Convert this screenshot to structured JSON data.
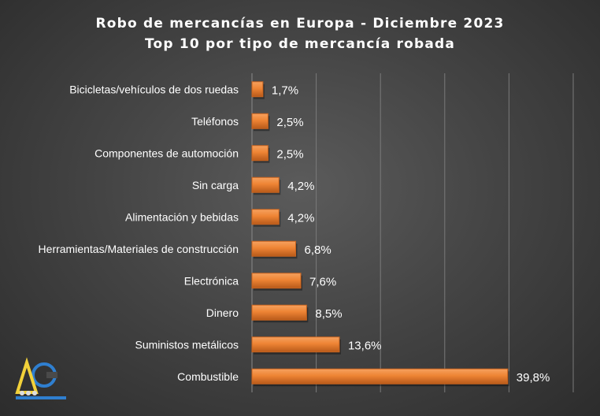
{
  "chart_data": {
    "type": "bar",
    "orientation": "horizontal",
    "title": "Robo de mercancías en Europa - Diciembre 2023",
    "subtitle": "Top 10 por tipo de mercancía robada",
    "categories": [
      "Bicicletas/vehículos de dos ruedas",
      "Teléfonos",
      "Componentes de automoción",
      "Sin carga",
      "Alimentación y bebidas",
      "Herramientas/Materiales de construcción",
      "Electrónica",
      "Dinero",
      "Suministos metálicos",
      "Combustible"
    ],
    "values": [
      1.7,
      2.5,
      2.5,
      4.2,
      4.2,
      6.8,
      7.6,
      8.5,
      13.6,
      39.8
    ],
    "value_labels": [
      "1,7%",
      "2,5%",
      "2,5%",
      "4,2%",
      "4,2%",
      "6,8%",
      "7,6%",
      "8,5%",
      "13,6%",
      "39,8%"
    ],
    "xlim": [
      0,
      50
    ],
    "grid": true,
    "legend": "none",
    "bar_color": "#f08a3c"
  }
}
